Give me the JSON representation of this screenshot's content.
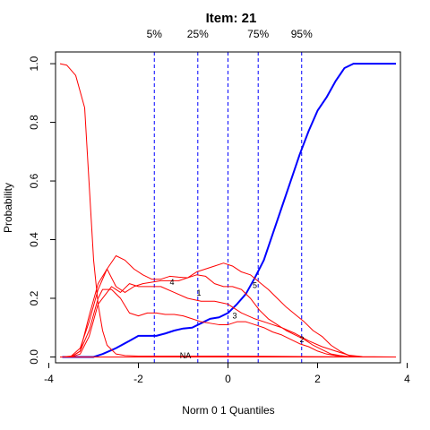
{
  "chart_data": {
    "type": "line",
    "title": "Item:  21",
    "xlabel": "Norm 0 1 Quantiles",
    "ylabel": "Probability",
    "xlim": [
      -3.85,
      3.85
    ],
    "ylim": [
      -0.02,
      1.04
    ],
    "x_ticks": [
      -4,
      -2,
      0,
      2,
      4
    ],
    "x_tick_labels": [
      "-4",
      "-2",
      "0",
      "2",
      "4"
    ],
    "y_ticks": [
      0.0,
      0.2,
      0.4,
      0.6,
      0.8,
      1.0
    ],
    "y_tick_labels": [
      "0.0",
      "0.2",
      "0.4",
      "0.6",
      "0.8",
      "1.0"
    ],
    "grid": false,
    "quantile_lines": [
      {
        "label": "5%",
        "x": -1.645
      },
      {
        "label": "25%",
        "x": -0.674
      },
      {
        "label": "",
        "x": 0.0
      },
      {
        "label": "75%",
        "x": 0.674
      },
      {
        "label": "95%",
        "x": 1.645
      }
    ],
    "series": [
      {
        "name": "5",
        "color": "#0000ff",
        "label_at": [
          0.6,
          0.245
        ],
        "x": [
          -3.7,
          -3.4,
          -3.0,
          -2.8,
          -2.5,
          -2.2,
          -2.0,
          -1.8,
          -1.6,
          -1.4,
          -1.2,
          -1.0,
          -0.8,
          -0.6,
          -0.4,
          -0.2,
          0.0,
          0.2,
          0.4,
          0.6,
          0.8,
          1.0,
          1.2,
          1.4,
          1.6,
          1.8,
          2.0,
          2.2,
          2.4,
          2.6,
          2.8,
          3.0,
          3.2,
          3.5,
          3.75
        ],
        "values": [
          0.0,
          0.0,
          0.0,
          0.01,
          0.03,
          0.055,
          0.072,
          0.072,
          0.072,
          0.08,
          0.09,
          0.097,
          0.1,
          0.115,
          0.13,
          0.135,
          0.15,
          0.18,
          0.215,
          0.27,
          0.33,
          0.42,
          0.51,
          0.6,
          0.69,
          0.77,
          0.84,
          0.885,
          0.94,
          0.985,
          1.0,
          1.0,
          1.0,
          1.0,
          1.0
        ]
      },
      {
        "name": "4",
        "color": "#ff0000",
        "label_at": [
          -1.25,
          0.255
        ],
        "x": [
          -3.7,
          -3.5,
          -3.3,
          -3.1,
          -2.9,
          -2.7,
          -2.5,
          -2.3,
          -2.1,
          -1.9,
          -1.7,
          -1.5,
          -1.3,
          -1.1,
          -0.9,
          -0.7,
          -0.5,
          -0.3,
          -0.1,
          0.1,
          0.3,
          0.5,
          0.7,
          0.9,
          1.1,
          1.3,
          1.5,
          1.7,
          1.9,
          2.1,
          2.3,
          2.5,
          2.7,
          3.0,
          3.75
        ],
        "values": [
          0.0,
          0.003,
          0.03,
          0.12,
          0.23,
          0.3,
          0.345,
          0.33,
          0.3,
          0.28,
          0.265,
          0.265,
          0.275,
          0.272,
          0.27,
          0.28,
          0.275,
          0.25,
          0.24,
          0.24,
          0.23,
          0.2,
          0.16,
          0.13,
          0.11,
          0.09,
          0.075,
          0.06,
          0.04,
          0.025,
          0.01,
          0.005,
          0.001,
          0.0,
          0.0
        ]
      },
      {
        "name": "1",
        "color": "#ff0000",
        "label_at": [
          -0.65,
          0.218
        ],
        "x": [
          -3.75,
          -3.6,
          -3.4,
          -3.2,
          -3.0,
          -2.9,
          -2.8,
          -2.7,
          -2.5,
          -2.3,
          -2.0,
          -1.5,
          -1.0,
          -0.5,
          0.0,
          1.0,
          2.0,
          3.0,
          3.75
        ],
        "values": [
          1.0,
          0.995,
          0.96,
          0.85,
          0.33,
          0.18,
          0.09,
          0.04,
          0.01,
          0.005,
          0.003,
          0.003,
          0.003,
          0.003,
          0.003,
          0.002,
          0.001,
          0.0,
          0.0
        ]
      },
      {
        "name": "3",
        "color": "#ff0000",
        "label_at": [
          0.15,
          0.14
        ],
        "x": [
          -3.7,
          -3.5,
          -3.3,
          -3.1,
          -2.9,
          -2.8,
          -2.6,
          -2.4,
          -2.2,
          -2.0,
          -1.8,
          -1.6,
          -1.4,
          -1.2,
          -1.0,
          -0.8,
          -0.6,
          -0.4,
          -0.2,
          0.0,
          0.2,
          0.4,
          0.6,
          0.8,
          1.0,
          1.2,
          1.4,
          1.6,
          1.8,
          2.0,
          2.2,
          2.4,
          2.7,
          3.0,
          3.75
        ],
        "values": [
          0.0,
          0.0,
          0.02,
          0.09,
          0.2,
          0.23,
          0.23,
          0.2,
          0.15,
          0.14,
          0.15,
          0.15,
          0.145,
          0.145,
          0.14,
          0.13,
          0.12,
          0.115,
          0.11,
          0.11,
          0.12,
          0.12,
          0.11,
          0.1,
          0.085,
          0.075,
          0.06,
          0.045,
          0.035,
          0.02,
          0.01,
          0.005,
          0.001,
          0.0,
          0.0
        ]
      },
      {
        "name": "2",
        "color": "#ff0000",
        "label_at": [
          1.65,
          0.06
        ],
        "x": [
          -3.7,
          -3.5,
          -3.3,
          -3.1,
          -2.9,
          -2.8,
          -2.6,
          -2.4,
          -2.2,
          -2.0,
          -1.8,
          -1.5,
          -1.2,
          -0.9,
          -0.6,
          -0.3,
          0.0,
          0.3,
          0.6,
          0.9,
          1.2,
          1.5,
          1.8,
          2.1,
          2.4,
          2.7,
          3.0,
          3.75
        ],
        "values": [
          0.0,
          0.0,
          0.01,
          0.07,
          0.18,
          0.2,
          0.24,
          0.22,
          0.25,
          0.24,
          0.24,
          0.24,
          0.22,
          0.2,
          0.19,
          0.19,
          0.18,
          0.15,
          0.13,
          0.115,
          0.1,
          0.08,
          0.055,
          0.035,
          0.02,
          0.006,
          0.001,
          0.0
        ]
      },
      {
        "name": "",
        "color": "#ff0000",
        "x": [
          -3.7,
          -3.5,
          -3.3,
          -3.1,
          -2.9,
          -2.7,
          -2.5,
          -2.3,
          -2.1,
          -1.9,
          -1.7,
          -1.5,
          -1.3,
          -1.1,
          -0.9,
          -0.7,
          -0.5,
          -0.3,
          -0.1,
          0.1,
          0.3,
          0.5,
          0.7,
          0.9,
          1.1,
          1.3,
          1.5,
          1.7,
          1.9,
          2.1,
          2.3,
          2.5,
          2.7,
          3.0,
          3.75
        ],
        "values": [
          0.0,
          0.0,
          0.02,
          0.14,
          0.25,
          0.3,
          0.24,
          0.22,
          0.24,
          0.25,
          0.255,
          0.26,
          0.26,
          0.26,
          0.27,
          0.29,
          0.3,
          0.31,
          0.32,
          0.31,
          0.29,
          0.28,
          0.255,
          0.23,
          0.2,
          0.17,
          0.145,
          0.12,
          0.09,
          0.07,
          0.04,
          0.02,
          0.005,
          0.0,
          0.0
        ]
      },
      {
        "name": "NA",
        "color": "#ff0000",
        "label_at": [
          -0.95,
          0.005
        ],
        "x": [
          -3.75,
          -3.0,
          -2.0,
          -1.0,
          0.0,
          1.0,
          2.0,
          3.0,
          3.75
        ],
        "values": [
          0.0,
          0.0,
          0.0,
          0.0,
          0.0,
          0.0,
          0.0,
          0.0,
          0.0
        ]
      }
    ]
  }
}
